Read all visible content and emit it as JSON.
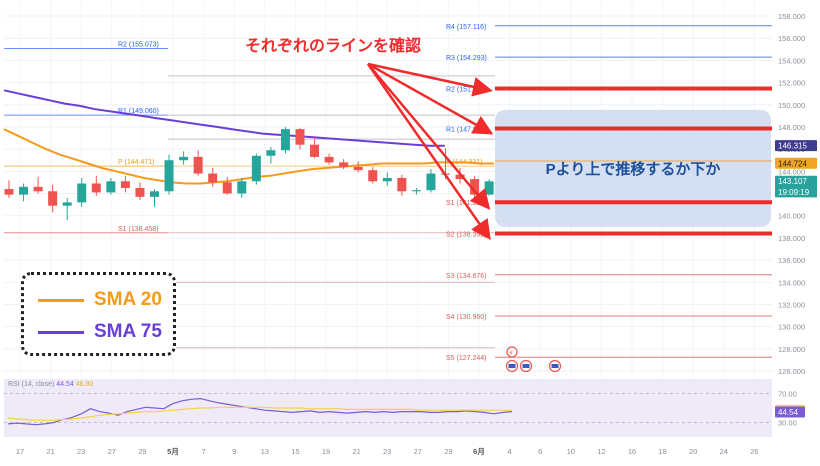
{
  "annotation": {
    "headline": "それぞれのラインを確認",
    "box_text": "Pより上で推移するか下か"
  },
  "legend": [
    {
      "label": "SMA 20",
      "color": "#f59a1b"
    },
    {
      "label": "SMA 75",
      "color": "#6a3fd8"
    }
  ],
  "chart_data": {
    "type": "candlestick",
    "price_axis": {
      "min": 126.0,
      "max": 158.0,
      "ticks": [
        "158.000",
        "156.000",
        "154.000",
        "152.000",
        "150.000",
        "148.000",
        "146.000",
        "144.000",
        "142.000",
        "140.000",
        "138.000",
        "136.000",
        "134.000",
        "132.000",
        "130.000",
        "128.000",
        "126.000"
      ]
    },
    "x_tick_labels": [
      "17",
      "21",
      "23",
      "27",
      "29",
      "5月",
      "7",
      "9",
      "13",
      "15",
      "19",
      "21",
      "23",
      "27",
      "29",
      "6月",
      "4",
      "6",
      "10",
      "12",
      "16",
      "18",
      "20",
      "24",
      "26"
    ],
    "price_badges": [
      {
        "text": "146.315",
        "value": 146.315,
        "bg": "#3d3c8f",
        "fg": "#ffffff"
      },
      {
        "text": "144.724",
        "value": 144.724,
        "bg": "#f4a425",
        "fg": "#222222"
      },
      {
        "text": "143.107",
        "value": 143.107,
        "bg": "#29a19c",
        "fg": "#ffffff"
      },
      {
        "text": "19:09:19",
        "value": 142.15,
        "bg": "#29a19c",
        "fg": "#ffffff"
      }
    ],
    "pivot_levels_prior": [
      {
        "name": "R2",
        "label": "R2 (155.073)",
        "value": 155.073,
        "color": "#2962ff"
      },
      {
        "name": "R1",
        "label": "R1 (149.060)",
        "value": 149.06,
        "color": "#2962ff"
      },
      {
        "name": "P",
        "label": "P (144.471)",
        "value": 144.471,
        "color": "#f59a1b"
      },
      {
        "name": "S1",
        "label": "S1 (138.458)",
        "value": 138.458,
        "color": "#e05a5a"
      }
    ],
    "pivot_levels_current": [
      {
        "name": "R4",
        "label": "R4 (157.116)",
        "value": 157.116,
        "color": "#2962ff"
      },
      {
        "name": "R3",
        "label": "R3 (154.293)",
        "value": 154.293,
        "color": "#2962ff"
      },
      {
        "name": "R2",
        "label": "R2 (151.470)",
        "value": 151.47,
        "color": "#2962ff"
      },
      {
        "name": "R1",
        "label": "R1 (147.854)",
        "value": 147.854,
        "color": "#2962ff"
      },
      {
        "name": "P",
        "label": "P (144.931)",
        "value": 144.931,
        "color": "#f59a1b"
      },
      {
        "name": "S1",
        "label": "S1 (141.214)",
        "value": 141.214,
        "color": "#e05a5a"
      },
      {
        "name": "S2",
        "label": "S2 (138.392)",
        "value": 138.392,
        "color": "#e05a5a"
      },
      {
        "name": "S3",
        "label": "S3 (134.676)",
        "value": 134.676,
        "color": "#e05a5a"
      },
      {
        "name": "S4",
        "label": "S4 (130.960)",
        "value": 130.96,
        "color": "#e05a5a"
      },
      {
        "name": "S5",
        "label": "S5 (127.244)",
        "value": 127.244,
        "color": "#e05a5a"
      }
    ],
    "highlight_lines": [
      151.47,
      147.854,
      141.214,
      138.392
    ],
    "sma20": [
      147.8,
      147.2,
      146.6,
      146.0,
      145.5,
      145.1,
      144.7,
      144.3,
      144.0,
      143.7,
      143.4,
      143.2,
      143.0,
      142.9,
      142.9,
      143.0,
      143.1,
      143.3,
      143.5,
      143.6,
      143.8,
      144.0,
      144.2,
      144.3,
      144.4,
      144.5,
      144.6,
      144.7,
      144.7,
      144.7,
      144.7,
      144.8,
      144.8,
      144.8,
      144.7,
      144.7
    ],
    "sma75": [
      151.3,
      151.0,
      150.7,
      150.4,
      150.1,
      149.9,
      149.6,
      149.4,
      149.2,
      149.0,
      148.8,
      148.6,
      148.4,
      148.2,
      148.0,
      147.8,
      147.6,
      147.4,
      147.3,
      147.2,
      147.1,
      147.0,
      146.9,
      146.8,
      146.7,
      146.6,
      146.5,
      146.4,
      146.3,
      146.3
    ],
    "candles": [
      {
        "o": 142.4,
        "h": 143.2,
        "l": 141.6,
        "c": 141.9
      },
      {
        "o": 141.9,
        "h": 142.9,
        "l": 141.3,
        "c": 142.6
      },
      {
        "o": 142.6,
        "h": 143.5,
        "l": 142.0,
        "c": 142.2
      },
      {
        "o": 142.2,
        "h": 142.8,
        "l": 140.3,
        "c": 140.9
      },
      {
        "o": 140.9,
        "h": 141.6,
        "l": 139.6,
        "c": 141.2
      },
      {
        "o": 141.2,
        "h": 143.4,
        "l": 140.8,
        "c": 142.9
      },
      {
        "o": 142.9,
        "h": 143.6,
        "l": 141.8,
        "c": 142.1
      },
      {
        "o": 142.1,
        "h": 143.4,
        "l": 141.9,
        "c": 143.1
      },
      {
        "o": 143.1,
        "h": 143.6,
        "l": 142.1,
        "c": 142.5
      },
      {
        "o": 142.5,
        "h": 143.0,
        "l": 141.4,
        "c": 141.7
      },
      {
        "o": 141.7,
        "h": 142.4,
        "l": 140.8,
        "c": 142.2
      },
      {
        "o": 142.2,
        "h": 145.5,
        "l": 141.9,
        "c": 145.0
      },
      {
        "o": 145.0,
        "h": 145.8,
        "l": 144.6,
        "c": 145.3
      },
      {
        "o": 145.3,
        "h": 145.9,
        "l": 143.6,
        "c": 143.8
      },
      {
        "o": 143.8,
        "h": 144.3,
        "l": 142.6,
        "c": 143.0
      },
      {
        "o": 143.0,
        "h": 143.5,
        "l": 141.9,
        "c": 142.0
      },
      {
        "o": 142.0,
        "h": 143.4,
        "l": 141.6,
        "c": 143.1
      },
      {
        "o": 143.1,
        "h": 145.6,
        "l": 142.8,
        "c": 145.4
      },
      {
        "o": 145.4,
        "h": 146.2,
        "l": 144.7,
        "c": 145.9
      },
      {
        "o": 145.9,
        "h": 148.0,
        "l": 145.6,
        "c": 147.8
      },
      {
        "o": 147.8,
        "h": 147.9,
        "l": 146.0,
        "c": 146.4
      },
      {
        "o": 146.4,
        "h": 146.9,
        "l": 145.2,
        "c": 145.3
      },
      {
        "o": 145.3,
        "h": 145.6,
        "l": 144.6,
        "c": 144.8
      },
      {
        "o": 144.8,
        "h": 145.1,
        "l": 144.2,
        "c": 144.4
      },
      {
        "o": 144.4,
        "h": 144.9,
        "l": 143.9,
        "c": 144.1
      },
      {
        "o": 144.1,
        "h": 144.4,
        "l": 142.9,
        "c": 143.1
      },
      {
        "o": 143.1,
        "h": 143.9,
        "l": 142.7,
        "c": 143.4
      },
      {
        "o": 143.4,
        "h": 143.7,
        "l": 141.8,
        "c": 142.2
      },
      {
        "o": 142.2,
        "h": 142.5,
        "l": 141.9,
        "c": 142.3
      },
      {
        "o": 142.3,
        "h": 144.2,
        "l": 142.1,
        "c": 143.8
      },
      {
        "o": 143.8,
        "h": 146.1,
        "l": 143.3,
        "c": 143.7
      },
      {
        "o": 143.7,
        "h": 144.3,
        "l": 142.9,
        "c": 143.3
      },
      {
        "o": 143.3,
        "h": 143.6,
        "l": 141.6,
        "c": 141.9
      },
      {
        "o": 141.9,
        "h": 143.3,
        "l": 141.8,
        "c": 143.1
      }
    ],
    "rsi": {
      "label": "RSI (14, close)",
      "value_text": "44.54",
      "ma_text": "46.80",
      "min": 10,
      "max": 90,
      "ticks": [
        "70.00",
        "30.00"
      ],
      "values": [
        28,
        29,
        28,
        27,
        28,
        30,
        34,
        37,
        42,
        49,
        45,
        43,
        40,
        45,
        48,
        51,
        50,
        49,
        56,
        60,
        62,
        63,
        60,
        57,
        55,
        53,
        51,
        49,
        47,
        46,
        45,
        44,
        45,
        46,
        44,
        45,
        44,
        43,
        44,
        45,
        44,
        45,
        44,
        45,
        45,
        45,
        44,
        44,
        45,
        45,
        46,
        45,
        44,
        42,
        44,
        45
      ],
      "ma_values": [
        36,
        35,
        34,
        33,
        33,
        33,
        34,
        35,
        36,
        38,
        40,
        41,
        42,
        43,
        44,
        45,
        45,
        46,
        47,
        48,
        49,
        50,
        50,
        51,
        51,
        51,
        51,
        51,
        51,
        50,
        50,
        50,
        50,
        49,
        49,
        49,
        49,
        48,
        48,
        48,
        48,
        48,
        48,
        48,
        48,
        47,
        47,
        47,
        47,
        47,
        47,
        47,
        47,
        47,
        47,
        47
      ],
      "badges": [
        {
          "text": "46.80",
          "value": 46.8,
          "bg": "#f5d247",
          "fg": "#222222"
        },
        {
          "text": "44.54",
          "value": 44.54,
          "bg": "#7b5bd6",
          "fg": "#ffffff"
        }
      ]
    }
  }
}
